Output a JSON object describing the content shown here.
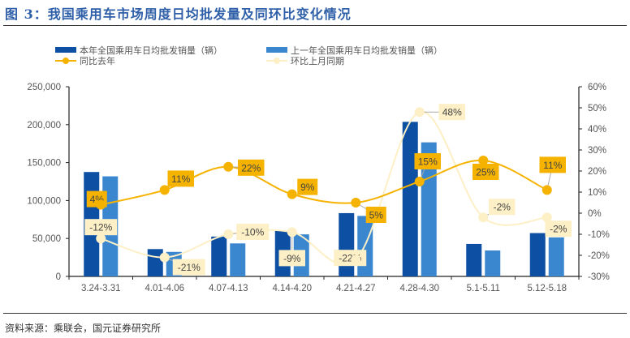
{
  "title": "图 3：我国乘用车市场周度日均批发量及同环比变化情况",
  "source": "资料来源：乘联会，国元证券研究所",
  "colors": {
    "title": "#2e5fa8",
    "bar_current": "#0d4fa3",
    "bar_prior": "#3a87d0",
    "line_yoy": "#f5b300",
    "line_mom": "#fdefc6"
  },
  "chart_data": {
    "type": "bar+line",
    "categories": [
      "3.24-3.31",
      "4.01-4.06",
      "4.07-4.13",
      "4.14-4.20",
      "4.21-4.27",
      "4.28-4.30",
      "5.1-5.11",
      "5.12-5.18"
    ],
    "left_axis": {
      "ylim": [
        0,
        250000
      ],
      "ticks": [
        "0",
        "50,000",
        "100,000",
        "150,000",
        "200,000",
        "250,000"
      ]
    },
    "right_axis": {
      "ylim": [
        -30,
        60
      ],
      "ticks": [
        "-30%",
        "-20%",
        "-10%",
        "0%",
        "10%",
        "20%",
        "30%",
        "40%",
        "50%",
        "60%"
      ]
    },
    "legend_position": "top",
    "grid": false,
    "series": [
      {
        "name": "本年全国乘用车日均批发销量（辆）",
        "type": "bar",
        "axis": "left",
        "values": [
          137600,
          36000,
          52500,
          60000,
          83400,
          203700,
          42800,
          57100
        ]
      },
      {
        "name": "上一年全国乘用车日均批发销量（辆）",
        "type": "bar",
        "axis": "left",
        "values": [
          131900,
          32300,
          43500,
          55400,
          79700,
          176700,
          34200,
          51400
        ]
      },
      {
        "name": "同比去年",
        "type": "line",
        "axis": "right",
        "values": [
          4,
          11,
          22,
          9,
          5,
          15,
          25,
          11
        ],
        "labels": [
          "4%",
          "11%",
          "22%",
          "9%",
          "5%",
          "15%",
          "25%",
          "11%"
        ]
      },
      {
        "name": "环比上月同期",
        "type": "line",
        "axis": "right",
        "values": [
          -12,
          -21,
          -10,
          -9,
          -22,
          48,
          -2,
          -2
        ],
        "labels": [
          "-12%",
          "-21%",
          "-10%",
          "-9%",
          "-22%",
          "48%",
          "-2%",
          "-2%"
        ]
      }
    ]
  }
}
